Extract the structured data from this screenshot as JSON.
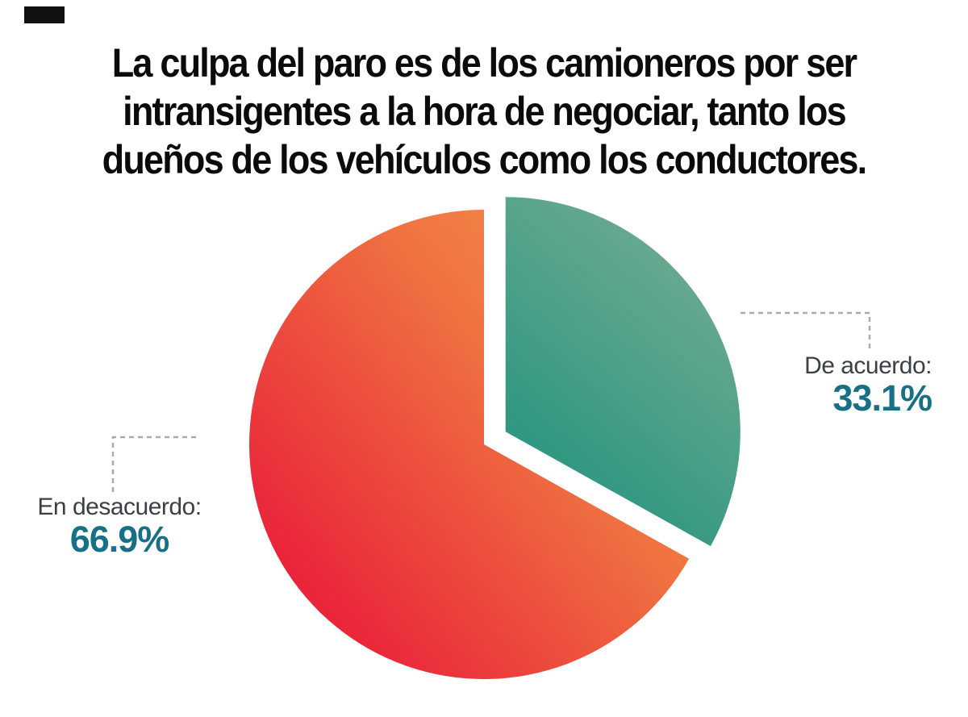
{
  "title_lines": [
    "La culpa del paro es de los camioneros por ser",
    "intransigentes a la hora de negociar, tanto los",
    "dueños de los vehículos como los conductores."
  ],
  "chart_data": {
    "type": "pie",
    "title": "La culpa del paro es de los camioneros por ser intransigentes a la hora de negociar, tanto los dueños de los vehículos como los conductores.",
    "labels": [
      "De acuerdo",
      "En desacuerdo"
    ],
    "values": [
      33.1,
      66.9
    ],
    "unit": "%",
    "start_angle_deg": 0,
    "rotation": "clockwise",
    "exploded_slice": "De acuerdo",
    "legend_position": "callouts",
    "slices": [
      {
        "label": "De acuerdo",
        "value": 33.1,
        "gradient": [
          "#78ae93",
          "#178f7c"
        ]
      },
      {
        "label": "En desacuerdo",
        "value": 66.9,
        "gradient": [
          "#f59d4f",
          "#ef7140",
          "#e9173a"
        ]
      }
    ]
  },
  "callouts": [
    {
      "label": "De acuerdo:",
      "value": "33.1%"
    },
    {
      "label": "En desacuerdo:",
      "value": "66.9%"
    }
  ],
  "colors": {
    "title": "#0b0b0b",
    "callout_label": "#3b4045",
    "callout_value": "#176f88",
    "callout_line": "#ababab",
    "background": "#ffffff",
    "corner_mark": "#111111"
  }
}
